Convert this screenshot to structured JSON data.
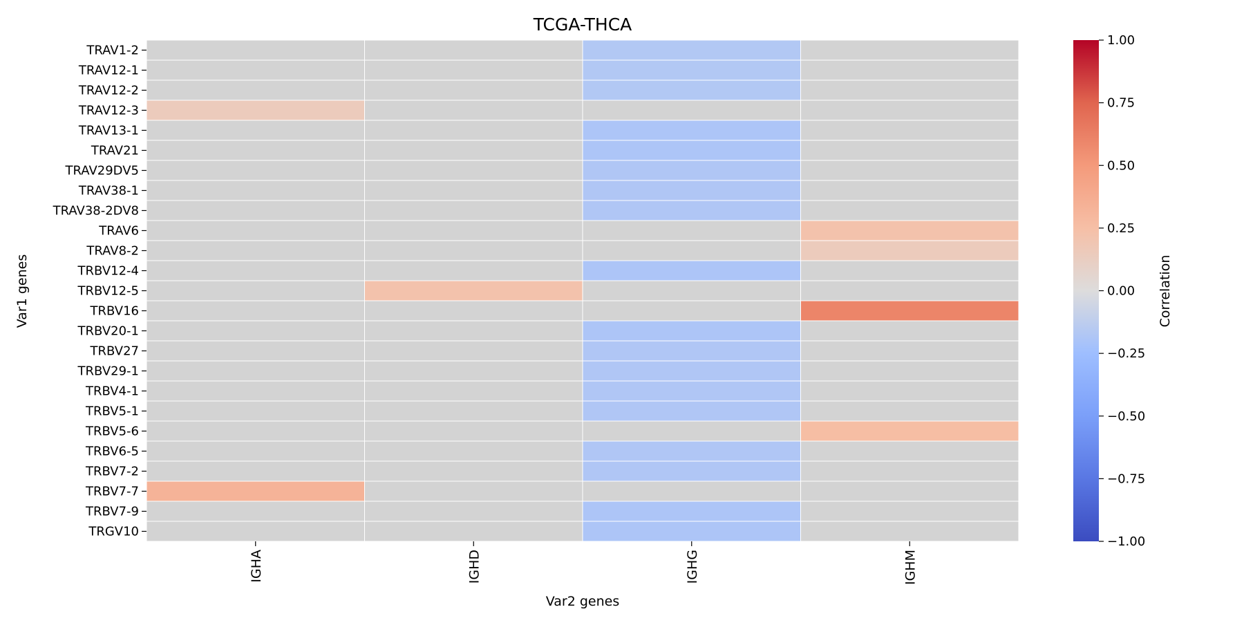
{
  "chart_data": {
    "type": "heatmap",
    "title": "TCGA-THCA",
    "xlabel": "Var2 genes",
    "ylabel": "Var1 genes",
    "columns": [
      "IGHA",
      "IGHD",
      "IGHG",
      "IGHM"
    ],
    "rows": [
      "TRAV1-2",
      "TRAV12-1",
      "TRAV12-2",
      "TRAV12-3",
      "TRAV13-1",
      "TRAV21",
      "TRAV29DV5",
      "TRAV38-1",
      "TRAV38-2DV8",
      "TRAV6",
      "TRAV8-2",
      "TRBV12-4",
      "TRBV12-5",
      "TRBV16",
      "TRBV20-1",
      "TRBV27",
      "TRBV29-1",
      "TRBV4-1",
      "TRBV5-1",
      "TRBV5-6",
      "TRBV6-5",
      "TRBV7-2",
      "TRBV7-7",
      "TRBV7-9",
      "TRGV10"
    ],
    "values": [
      [
        null,
        null,
        -0.17,
        null
      ],
      [
        null,
        null,
        -0.17,
        null
      ],
      [
        null,
        null,
        -0.17,
        null
      ],
      [
        0.15,
        null,
        null,
        null
      ],
      [
        null,
        null,
        -0.19,
        null
      ],
      [
        null,
        null,
        -0.19,
        null
      ],
      [
        null,
        null,
        -0.18,
        null
      ],
      [
        null,
        null,
        -0.18,
        null
      ],
      [
        null,
        null,
        -0.18,
        null
      ],
      [
        null,
        null,
        null,
        0.22
      ],
      [
        null,
        null,
        null,
        0.15
      ],
      [
        null,
        null,
        -0.19,
        null
      ],
      [
        null,
        0.22,
        null,
        null
      ],
      [
        null,
        null,
        null,
        0.6
      ],
      [
        null,
        null,
        -0.19,
        null
      ],
      [
        null,
        null,
        -0.18,
        null
      ],
      [
        null,
        null,
        -0.18,
        null
      ],
      [
        null,
        null,
        -0.18,
        null
      ],
      [
        null,
        null,
        -0.18,
        null
      ],
      [
        null,
        null,
        null,
        0.26
      ],
      [
        null,
        null,
        -0.18,
        null
      ],
      [
        null,
        null,
        -0.18,
        null
      ],
      [
        0.33,
        null,
        null,
        null
      ],
      [
        null,
        null,
        -0.19,
        null
      ],
      [
        null,
        null,
        -0.19,
        null
      ]
    ],
    "missing_color": "#d3d3d3",
    "colormap": "coolwarm",
    "vmin": -1.0,
    "vmax": 1.0,
    "colorbar": {
      "label": "Correlation",
      "ticks": [
        1.0,
        0.75,
        0.5,
        0.25,
        0.0,
        -0.25,
        -0.5,
        -0.75,
        -1.0
      ],
      "tick_labels": [
        "1.00",
        "0.75",
        "0.50",
        "0.25",
        "0.00",
        "−0.25",
        "−0.50",
        "−0.75",
        "−1.00"
      ]
    }
  }
}
